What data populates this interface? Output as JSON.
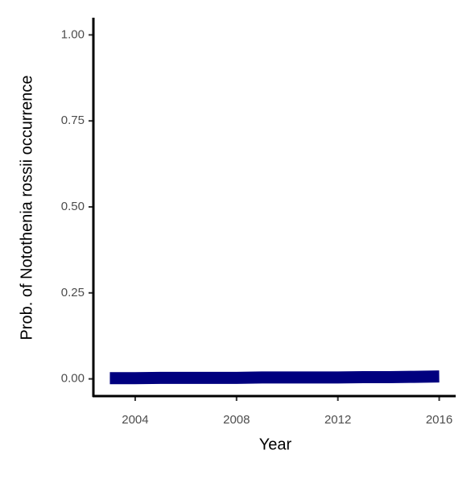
{
  "chart_data": {
    "type": "line",
    "x_label": "Year",
    "y_label": "Prob. of  Notothenia rossii  occurrence",
    "x": [
      2003,
      2004,
      2005,
      2006,
      2007,
      2008,
      2009,
      2010,
      2011,
      2012,
      2013,
      2014,
      2015,
      2016
    ],
    "series": [
      {
        "name": "Notothenia rossii",
        "color": "#00007f",
        "band_color": "#a6c8f0",
        "values": [
          0.002,
          0.002,
          0.003,
          0.003,
          0.003,
          0.003,
          0.004,
          0.004,
          0.004,
          0.004,
          0.005,
          0.005,
          0.006,
          0.007
        ],
        "lower": [
          0.0,
          0.0,
          0.0,
          0.0,
          0.001,
          0.001,
          0.001,
          0.001,
          0.001,
          0.001,
          0.001,
          0.001,
          0.001,
          0.001
        ],
        "upper": [
          0.006,
          0.006,
          0.006,
          0.006,
          0.006,
          0.006,
          0.007,
          0.007,
          0.008,
          0.009,
          0.01,
          0.012,
          0.014,
          0.017
        ]
      }
    ],
    "xlim": [
      2002.35,
      2016.65
    ],
    "xticks": [
      2004,
      2008,
      2012,
      2016
    ],
    "ylim": [
      -0.05,
      1.05
    ],
    "yticks": [
      {
        "value": 0,
        "label": "0.00"
      },
      {
        "value": 0.25,
        "label": "0.25"
      },
      {
        "value": 0.5,
        "label": "0.50"
      },
      {
        "value": 0.75,
        "label": "0.75"
      },
      {
        "value": 1,
        "label": "1.00"
      }
    ],
    "grid": false
  }
}
